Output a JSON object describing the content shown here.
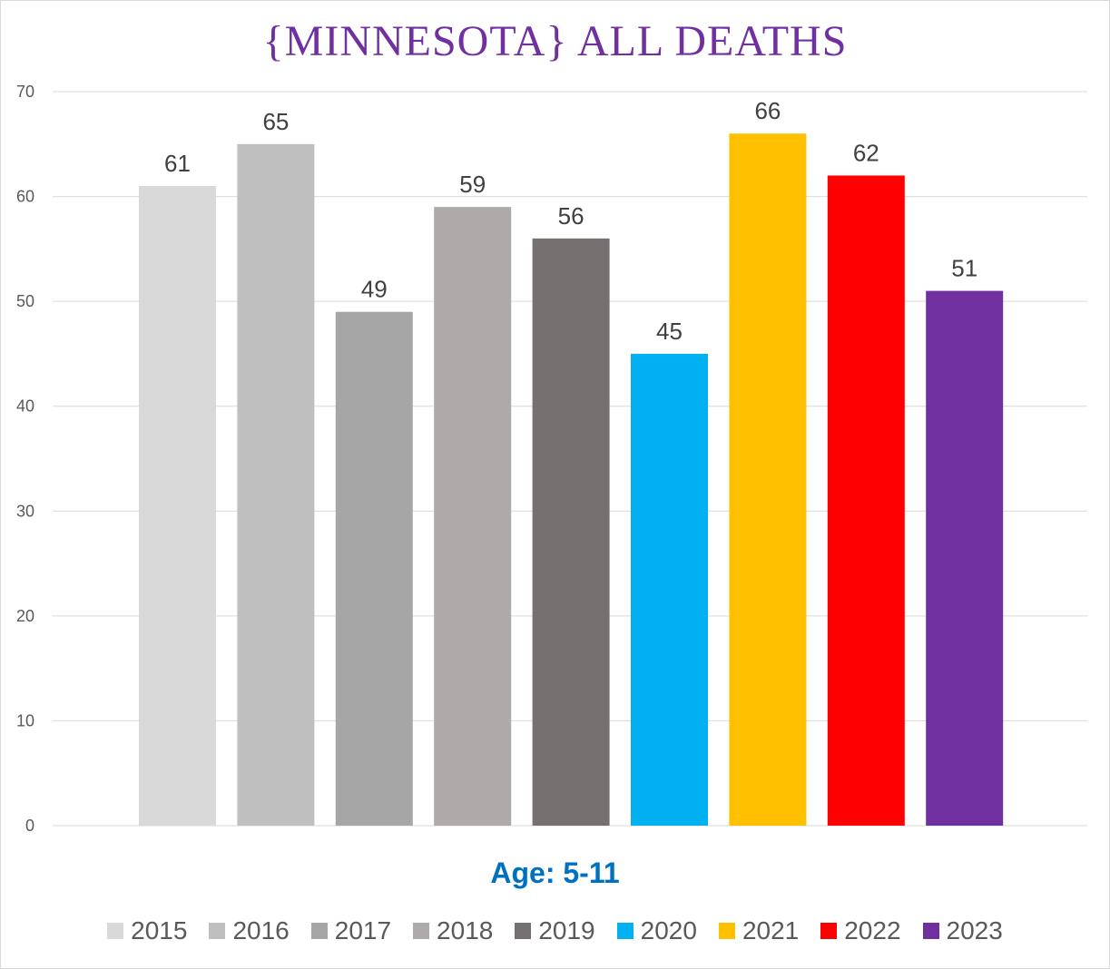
{
  "chart_data": {
    "type": "bar",
    "title": "{MINNESOTA}   ALL DEATHS",
    "xlabel": "Age: 5-11",
    "ylabel": "",
    "ylim": [
      0,
      70
    ],
    "yticks": [
      0,
      10,
      20,
      30,
      40,
      50,
      60,
      70
    ],
    "grid": true,
    "legend_position": "bottom",
    "categories": [
      "2015",
      "2016",
      "2017",
      "2018",
      "2019",
      "2020",
      "2021",
      "2022",
      "2023"
    ],
    "values": [
      61,
      65,
      49,
      59,
      56,
      45,
      66,
      62,
      51
    ],
    "colors": [
      "#d9d9d9",
      "#bfbfbf",
      "#a6a6a6",
      "#aeaaaa",
      "#757171",
      "#00b0f0",
      "#ffc000",
      "#ff0000",
      "#7030a0"
    ]
  }
}
